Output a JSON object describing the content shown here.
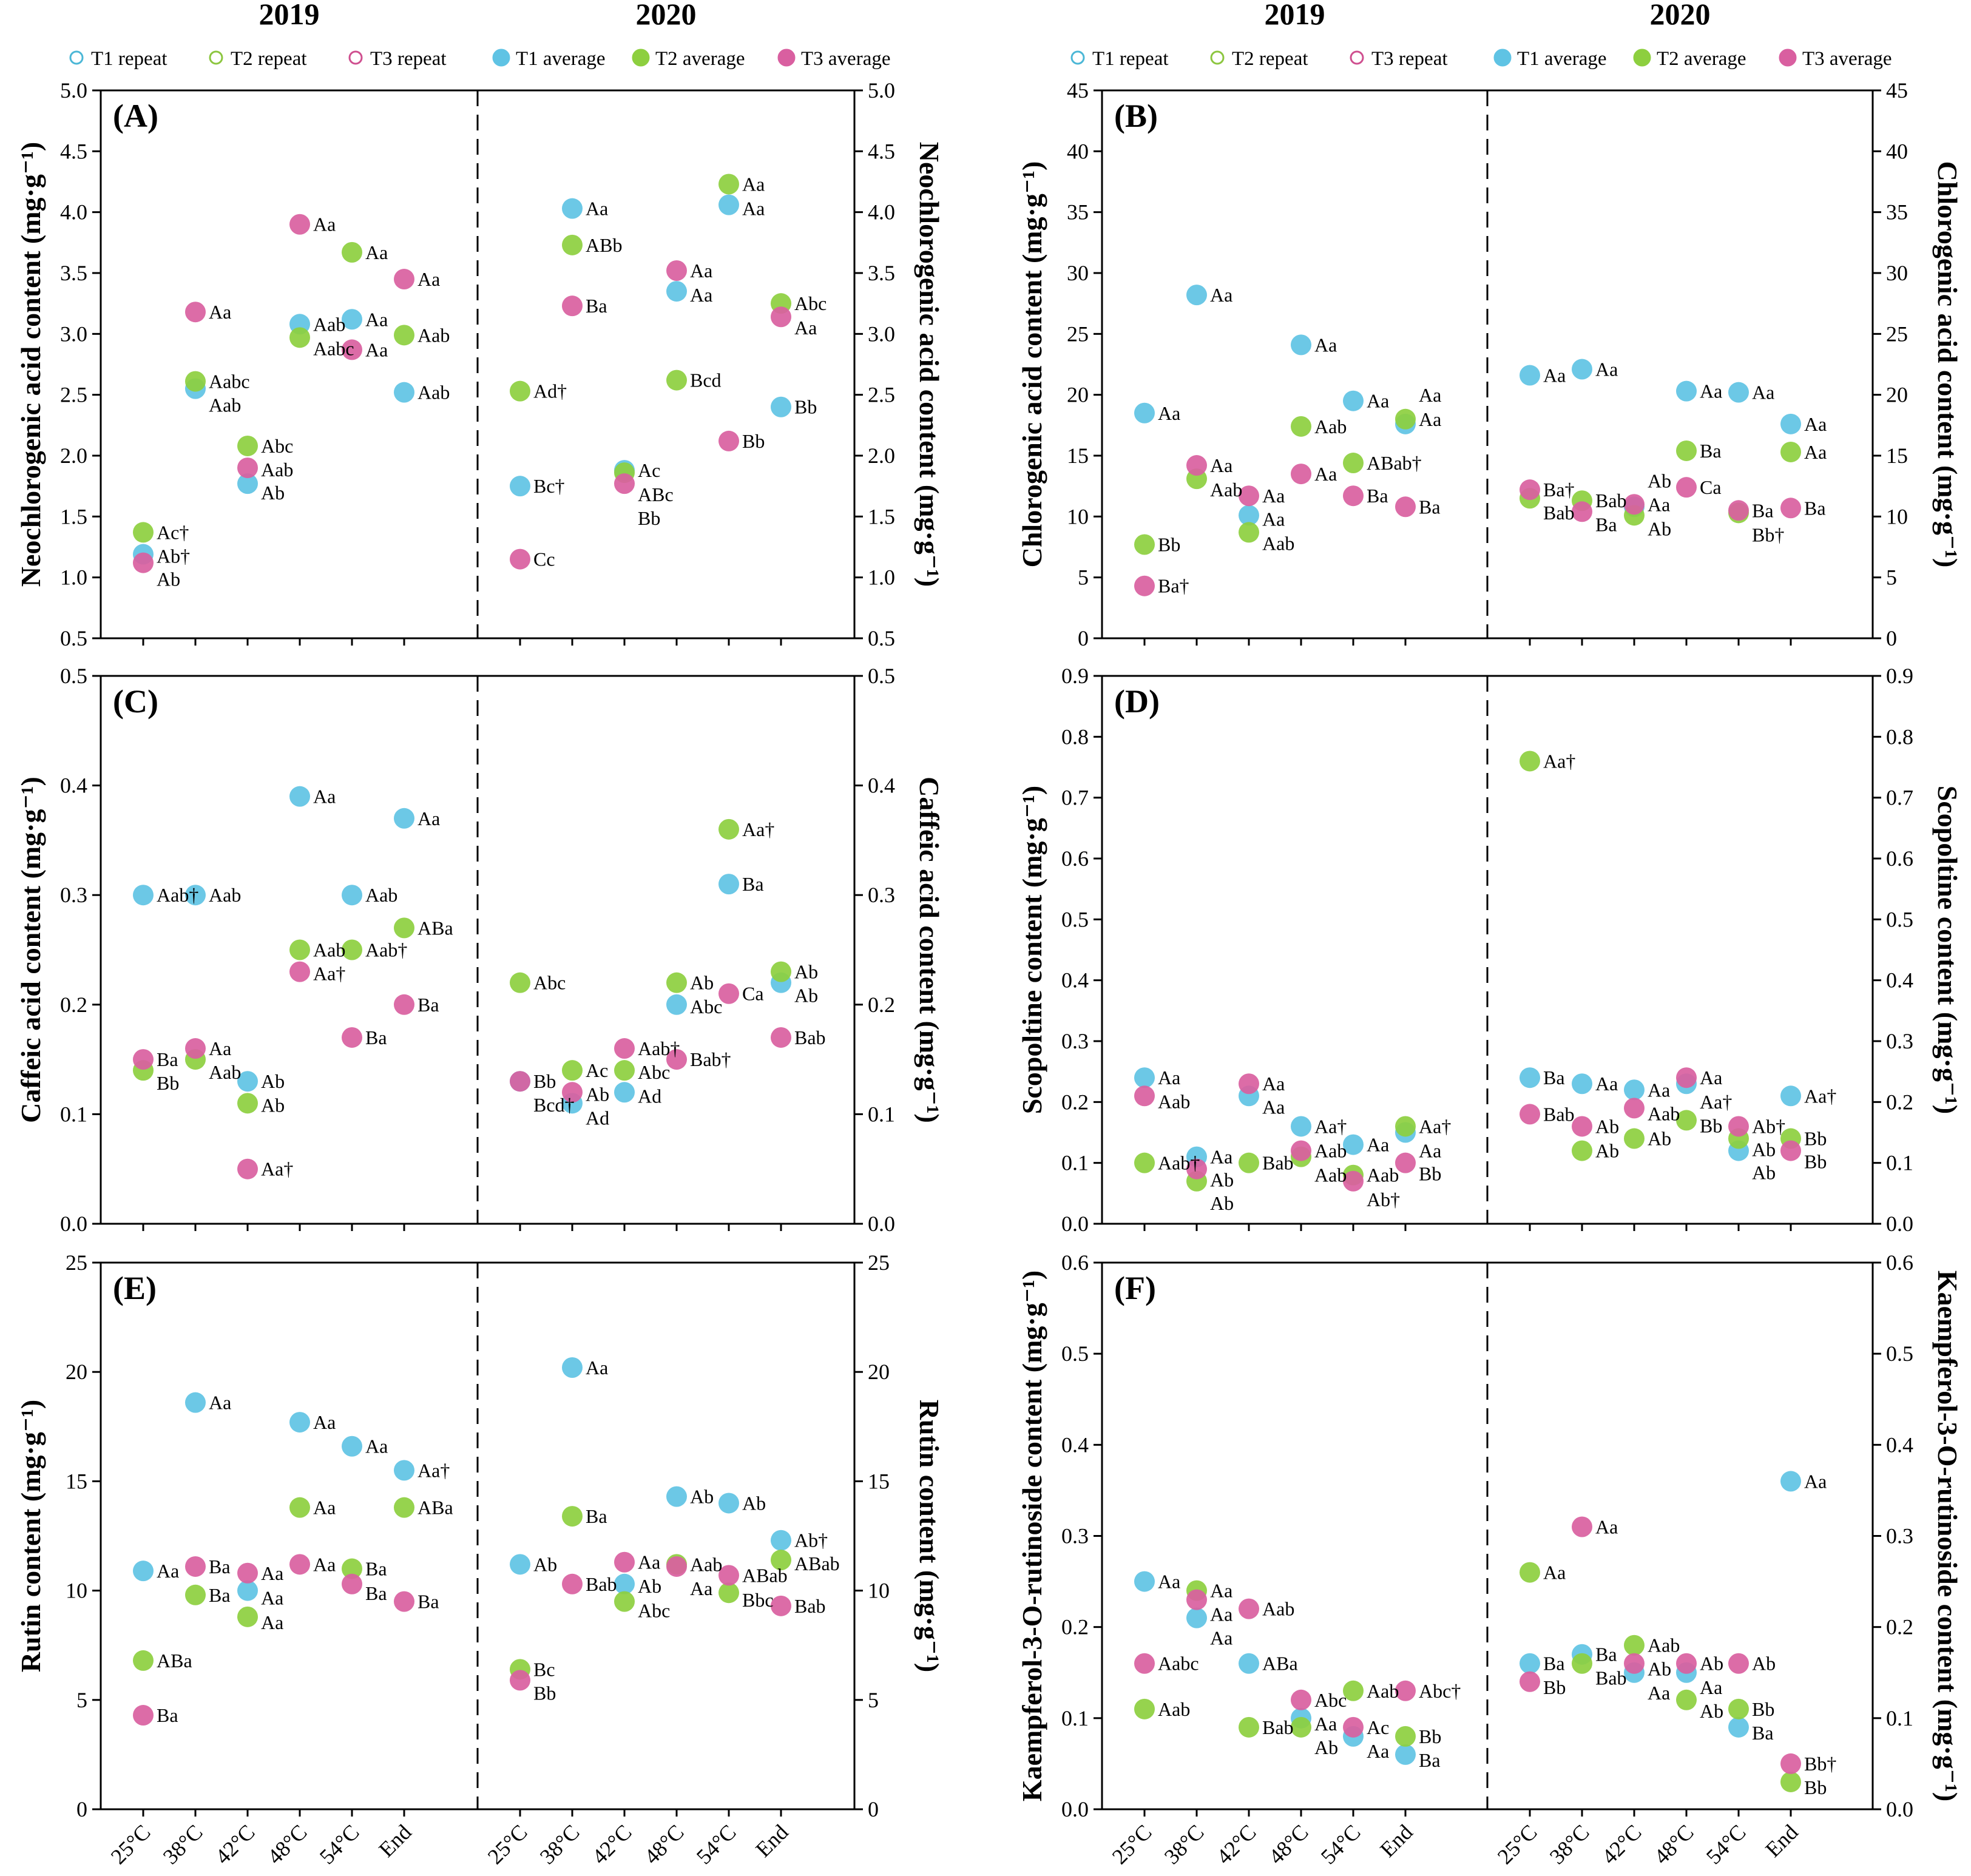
{
  "years": [
    "2019",
    "2020"
  ],
  "categories": [
    "25°C",
    "38°C",
    "42°C",
    "48°C",
    "54°C",
    "End"
  ],
  "legend": [
    {
      "key": "T1r",
      "label": "T1 repeat",
      "color": "#4bb7d6",
      "filled": false
    },
    {
      "key": "T2r",
      "label": "T2 repeat",
      "color": "#8cc63f",
      "filled": false
    },
    {
      "key": "T3r",
      "label": "T3 repeat",
      "color": "#cf4f8f",
      "filled": false
    },
    {
      "key": "T1",
      "label": "T1 average",
      "color": "#5fc3e4",
      "filled": true
    },
    {
      "key": "T2",
      "label": "T2 average",
      "color": "#8dcf3f",
      "filled": true
    },
    {
      "key": "T3",
      "label": "T3 average",
      "color": "#d95fa0",
      "filled": true
    }
  ],
  "chart_data": [
    {
      "type": "scatter",
      "panel": "(A)",
      "ylabel": "Neochlorogenic acid content (mg·g⁻¹)",
      "ylim": [
        0.5,
        5.0
      ],
      "ystep": 0.5,
      "decimals": 1,
      "series": {
        "2019": {
          "T1": [
            1.19,
            2.55,
            1.77,
            3.08,
            3.12,
            2.52
          ],
          "T1_labels": [
            "Ab†",
            "Aab",
            "Ab",
            "Aab",
            "Aa",
            "Aab"
          ],
          "T2": [
            1.37,
            2.61,
            2.08,
            2.97,
            3.67,
            2.99
          ],
          "T2_labels": [
            "Ac†",
            "Aabc",
            "Abc",
            "Aabc",
            "Aa",
            "Aab"
          ],
          "T3": [
            1.12,
            3.18,
            1.9,
            3.9,
            2.87,
            3.45
          ],
          "T3_labels": [
            "Ab",
            "Aa",
            "Aab",
            "Aa",
            "Aa",
            "Aa"
          ]
        },
        "2020": {
          "T1": [
            1.75,
            4.03,
            1.88,
            3.35,
            4.06,
            2.4
          ],
          "T1_labels": [
            "Bc†",
            "Aa",
            "Ac",
            "Aa",
            "Aa",
            "Bb"
          ],
          "T2": [
            2.53,
            3.73,
            1.86,
            2.62,
            4.23,
            3.25
          ],
          "T2_labels": [
            "Ad†",
            "ABb",
            "ABc",
            "Bcd",
            "Aa",
            "Abc"
          ],
          "T3": [
            1.15,
            3.23,
            1.77,
            3.52,
            2.12,
            3.14
          ],
          "T3_labels": [
            "Cc",
            "Ba",
            "Bb",
            "Aa",
            "Bb",
            "Aa"
          ]
        }
      }
    },
    {
      "type": "scatter",
      "panel": "(B)",
      "ylabel": "Chlorogenic acid content (mg·g⁻¹)",
      "ylim": [
        0,
        45
      ],
      "ystep": 5,
      "decimals": 0,
      "series": {
        "2019": {
          "T1": [
            18.5,
            28.2,
            10.1,
            24.1,
            19.5,
            17.6
          ],
          "T1_labels": [
            "Aa",
            "Aa",
            "Aa",
            "Aa",
            "Aa",
            "Aa"
          ],
          "T2": [
            7.7,
            13.1,
            8.7,
            17.4,
            14.4,
            18.0
          ],
          "T2_labels": [
            "Bb",
            "Aab",
            "Aab",
            "Aab",
            "ABab†",
            "Aa"
          ],
          "T3": [
            4.3,
            14.2,
            11.7,
            13.5,
            11.7,
            10.8
          ],
          "T3_labels": [
            "Ba†",
            "Aa",
            "Aa",
            "Aa",
            "Ba",
            "Ba"
          ]
        },
        "2020": {
          "T1": [
            21.6,
            22.1,
            10.8,
            20.3,
            20.2,
            17.6
          ],
          "T1_labels": [
            "Aa",
            "Aa",
            "Ab",
            "Aa",
            "Aa",
            "Aa"
          ],
          "T2": [
            11.5,
            11.3,
            10.1,
            15.4,
            10.3,
            15.3
          ],
          "T2_labels": [
            "Bab",
            "Bab",
            "Ab",
            "Ba",
            "Bb†",
            "Aa"
          ],
          "T3": [
            12.2,
            10.4,
            11.0,
            12.4,
            10.5,
            10.7
          ],
          "T3_labels": [
            "Ba†",
            "Ba",
            "Aa",
            "Ca",
            "Ba",
            "Ba"
          ]
        }
      }
    },
    {
      "type": "scatter",
      "panel": "(C)",
      "ylabel": "Caffeic acid content (mg·g⁻¹)",
      "ylim": [
        0,
        0.5
      ],
      "ystep": 0.1,
      "decimals": 1,
      "series": {
        "2019": {
          "T1": [
            0.3,
            0.3,
            0.13,
            0.39,
            0.3,
            0.37
          ],
          "T1_labels": [
            "Aab†",
            "Aab",
            "Ab",
            "Aa",
            "Aab",
            "Aa"
          ],
          "T2": [
            0.14,
            0.15,
            0.11,
            0.25,
            0.25,
            0.27
          ],
          "T2_labels": [
            "Bb",
            "Aab",
            "Ab",
            "Aab",
            "Aab†",
            "ABa"
          ],
          "T3": [
            0.15,
            0.16,
            0.05,
            0.23,
            0.17,
            0.2
          ],
          "T3_labels": [
            "Ba",
            "Aa",
            "Aa†",
            "Aa†",
            "Ba",
            "Ba"
          ]
        },
        "2020": {
          "T1": [
            0.13,
            0.11,
            0.12,
            0.2,
            0.31,
            0.22
          ],
          "T1_labels": [
            "Bb",
            "Ad",
            "Ad",
            "Abc",
            "Ba",
            "Ab"
          ],
          "T2": [
            0.22,
            0.14,
            0.14,
            0.22,
            0.36,
            0.23
          ],
          "T2_labels": [
            "Abc",
            "Ac",
            "Abc",
            "Ab",
            "Aa†",
            "Ab"
          ],
          "T3": [
            0.13,
            0.12,
            0.16,
            0.15,
            0.21,
            0.17
          ],
          "T3_labels": [
            "Bcd†",
            "Ab",
            "Aab†",
            "Bab†",
            "Ca",
            "Bab"
          ]
        }
      }
    },
    {
      "type": "scatter",
      "panel": "(D)",
      "ylabel": "Scopoltine content (mg·g⁻¹)",
      "ylim": [
        0,
        0.9
      ],
      "ystep": 0.1,
      "decimals": 1,
      "series": {
        "2019": {
          "T1": [
            0.24,
            0.11,
            0.21,
            0.16,
            0.13,
            0.15
          ],
          "T1_labels": [
            "Aa",
            "Aa",
            "Aa",
            "Aa†",
            "Aa",
            "Aa"
          ],
          "T2": [
            0.1,
            0.07,
            0.1,
            0.11,
            0.08,
            0.16
          ],
          "T2_labels": [
            "Aab†",
            "Ab",
            "Bab",
            "Aab",
            "Aab",
            "Aa†"
          ],
          "T3": [
            0.21,
            0.09,
            0.23,
            0.12,
            0.07,
            0.1
          ],
          "T3_labels": [
            "Aab",
            "Ab",
            "Aa",
            "Aab",
            "Ab†",
            "Bb"
          ]
        },
        "2020": {
          "T1": [
            0.24,
            0.23,
            0.22,
            0.23,
            0.12,
            0.21
          ],
          "T1_labels": [
            "Ba",
            "Aa",
            "Aa",
            "Aa†",
            "Ab",
            "Aa†"
          ],
          "T2": [
            0.76,
            0.12,
            0.14,
            0.17,
            0.14,
            0.14
          ],
          "T2_labels": [
            "Aa†",
            "Ab",
            "Ab",
            "Bb",
            "Ab",
            "Bb"
          ],
          "T3": [
            0.18,
            0.16,
            0.19,
            0.24,
            0.16,
            0.12
          ],
          "T3_labels": [
            "Bab",
            "Ab",
            "Aab",
            "Aa",
            "Ab†",
            "Bb"
          ]
        }
      }
    },
    {
      "type": "scatter",
      "panel": "(E)",
      "ylabel": "Rutin content (mg·g⁻¹)",
      "ylim": [
        0,
        25
      ],
      "ystep": 5,
      "decimals": 0,
      "series": {
        "2019": {
          "T1": [
            10.9,
            18.6,
            10.0,
            17.7,
            16.6,
            15.5
          ],
          "T1_labels": [
            "Aa",
            "Aa",
            "Aa",
            "Aa",
            "Aa",
            "Aa†"
          ],
          "T2": [
            6.8,
            9.8,
            8.8,
            13.8,
            11.0,
            13.8
          ],
          "T2_labels": [
            "ABa",
            "Ba",
            "Aa",
            "Aa",
            "Ba",
            "ABa"
          ],
          "T3": [
            4.3,
            11.1,
            10.8,
            11.2,
            10.3,
            9.5
          ],
          "T3_labels": [
            "Ba",
            "Ba",
            "Aa",
            "Aa",
            "Ba",
            "Ba"
          ]
        },
        "2020": {
          "T1": [
            11.2,
            20.2,
            10.3,
            14.3,
            14.0,
            12.3
          ],
          "T1_labels": [
            "Ab",
            "Aa",
            "Ab",
            "Ab",
            "Ab",
            "Ab†"
          ],
          "T2": [
            6.4,
            13.4,
            9.5,
            11.2,
            9.9,
            11.4
          ],
          "T2_labels": [
            "Bc",
            "Ba",
            "Abc",
            "Aab",
            "Bbc",
            "ABab"
          ],
          "T3": [
            5.9,
            10.3,
            11.3,
            11.1,
            10.7,
            9.3
          ],
          "T3_labels": [
            "Bb",
            "Bab",
            "Aa",
            "Aa",
            "ABab",
            "Bab"
          ]
        }
      }
    },
    {
      "type": "scatter",
      "panel": "(F)",
      "ylabel": "Kaempferol-3-O-rutinoside content (mg·g⁻¹)",
      "ylim": [
        0,
        0.6
      ],
      "ystep": 0.1,
      "decimals": 1,
      "series": {
        "2019": {
          "T1": [
            0.25,
            0.21,
            0.16,
            0.1,
            0.08,
            0.06
          ],
          "T1_labels": [
            "Aa",
            "Aa",
            "ABa",
            "Aa",
            "Aa",
            "Ba"
          ],
          "T2": [
            0.11,
            0.24,
            0.09,
            0.09,
            0.13,
            0.08
          ],
          "T2_labels": [
            "Aab",
            "Aa",
            "Bab",
            "Ab",
            "Aab",
            "Bb"
          ],
          "T3": [
            0.16,
            0.23,
            0.22,
            0.12,
            0.09,
            0.13
          ],
          "T3_labels": [
            "Aabc",
            "Aa",
            "Aab",
            "Abc",
            "Ac",
            "Abc†"
          ]
        },
        "2020": {
          "T1": [
            0.16,
            0.17,
            0.15,
            0.15,
            0.09,
            0.36
          ],
          "T1_labels": [
            "Ba",
            "Ba",
            "Aa",
            "Aa",
            "Ba",
            "Aa"
          ],
          "T2": [
            0.26,
            0.16,
            0.18,
            0.12,
            0.11,
            0.03
          ],
          "T2_labels": [
            "Aa",
            "Bab",
            "Aab",
            "Ab",
            "Bb",
            "Bb"
          ],
          "T3": [
            0.14,
            0.31,
            0.16,
            0.16,
            0.16,
            0.05
          ],
          "T3_labels": [
            "Bb",
            "Aa",
            "Ab",
            "Ab",
            "Ab",
            "Bb†"
          ]
        }
      }
    }
  ]
}
